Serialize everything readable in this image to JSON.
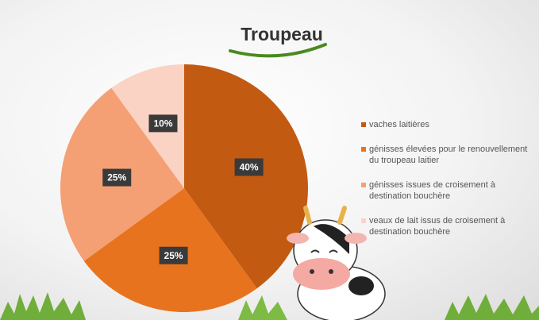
{
  "chart_data": {
    "type": "pie",
    "title": "Troupeau",
    "categories": [
      "vaches laitières",
      "génisses élevées pour le renouvellement du troupeau laitier",
      "génisses issues de croisement à destination bouchère",
      "veaux de lait issus de croisement à destination bouchère"
    ],
    "values": [
      40,
      25,
      25,
      10
    ],
    "value_labels": [
      "40%",
      "25%",
      "25%",
      "10%"
    ],
    "colors": [
      "#c25a12",
      "#e8731f",
      "#f4a074",
      "#fbd3c4"
    ],
    "legend": "right"
  }
}
